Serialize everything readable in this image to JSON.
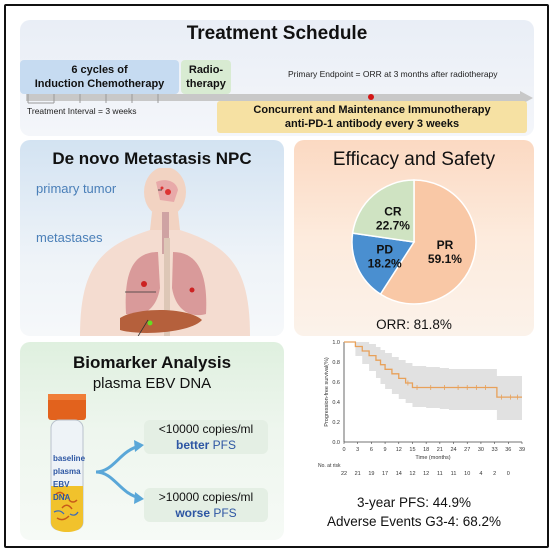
{
  "schedule": {
    "title": "Treatment Schedule",
    "induction_line1": "6 cycles of",
    "induction_line2": "Induction Chemotherapy",
    "radio_line1": "Radio-",
    "radio_line2": "therapy",
    "primary_endpoint": "Primary Endpoint = ORR at 3 months after radiotherapy",
    "treatment_interval": "Treatment Interval = 3 weeks",
    "immuno_line1": "Concurrent and Maintenance Immunotherapy",
    "immuno_line2": "anti-PD-1 antibody every 3 weeks"
  },
  "npc": {
    "title": "De novo Metastasis NPC",
    "primary_tumor": "primary tumor",
    "metastases": "metastases"
  },
  "efficacy": {
    "title": "Efficacy and Safety",
    "orr": "ORR: 81.8%",
    "pfs": "3-year PFS: 44.9%",
    "adverse": "Adverse Events G3-4: 68.2%"
  },
  "chart_data": [
    {
      "type": "pie",
      "slices": [
        {
          "label": "PR",
          "value": 59.1,
          "text": "59.1%",
          "color": "#f9c8a6"
        },
        {
          "label": "PD",
          "value": 18.2,
          "text": "18.2%",
          "color": "#4a8fd0"
        },
        {
          "label": "CR",
          "value": 22.7,
          "text": "22.7%",
          "color": "#cfe3c2"
        }
      ]
    },
    {
      "type": "line",
      "ylabel": "Progression-free survival(%)",
      "xlabel": "Time (months)",
      "xlim": [
        0,
        39
      ],
      "ylim": [
        0,
        1.0
      ],
      "x_ticks": [
        0,
        3,
        6,
        9,
        12,
        15,
        18,
        21,
        24,
        27,
        30,
        33,
        36,
        39
      ],
      "y_ticks": [
        0.0,
        0.2,
        0.4,
        0.6,
        0.8,
        1.0
      ],
      "risk_label": "No. at risk",
      "at_risk": [
        22,
        21,
        19,
        17,
        14,
        12,
        12,
        11,
        11,
        10,
        4,
        2,
        0
      ],
      "series": [
        {
          "color": "#e8a15a",
          "x": [
            0,
            2.5,
            4,
            5.5,
            7,
            8,
            9,
            10.5,
            12,
            13.5,
            15,
            18,
            21,
            23,
            33.5,
            39
          ],
          "y": [
            1.0,
            0.955,
            0.91,
            0.864,
            0.818,
            0.773,
            0.727,
            0.682,
            0.636,
            0.59,
            0.545,
            0.545,
            0.545,
            0.545,
            0.449,
            0.449
          ]
        }
      ],
      "ci_upper": [
        1.0,
        1.0,
        1.0,
        0.98,
        0.95,
        0.92,
        0.89,
        0.85,
        0.82,
        0.79,
        0.76,
        0.75,
        0.74,
        0.73,
        0.66,
        0.66
      ],
      "ci_lower": [
        1.0,
        0.86,
        0.78,
        0.71,
        0.64,
        0.58,
        0.53,
        0.48,
        0.43,
        0.39,
        0.35,
        0.34,
        0.33,
        0.32,
        0.22,
        0.22
      ]
    }
  ],
  "biomarker": {
    "title": "Biomarker Analysis",
    "subtitle": "plasma EBV DNA",
    "tube_labels": [
      "baseline",
      "plasma",
      "EBV",
      "DNA"
    ],
    "low_threshold": "<10000 copies/ml",
    "low_word": "better",
    "high_threshold": ">10000 copies/ml",
    "high_word": "worse",
    "pfs_word": "PFS"
  }
}
